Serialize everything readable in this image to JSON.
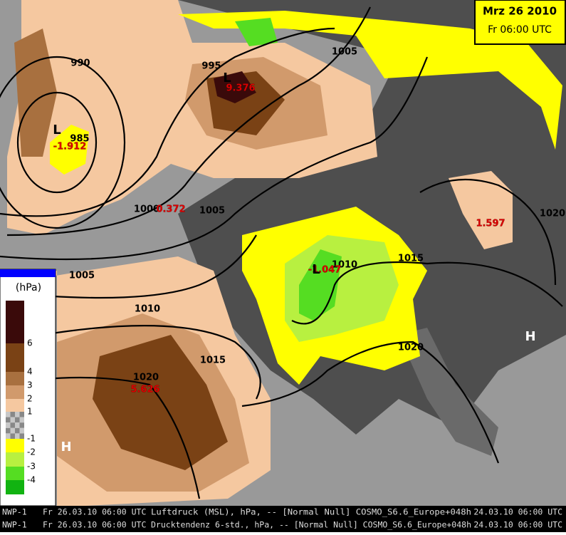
{
  "header": {
    "date": "Mrz 26 2010",
    "time": "Fr 06:00 UTC"
  },
  "isobar_labels": [
    "990",
    "995",
    "1005",
    "985",
    "1000",
    "1005",
    "1005",
    "1010",
    "1015",
    "1020",
    "1010",
    "1015",
    "1020",
    "1020"
  ],
  "tendency_values": [
    "9.376",
    "-1.912",
    "0.372",
    "1.597",
    "-1.047",
    "5.626"
  ],
  "centers": [
    "L",
    "L",
    "L",
    "H",
    "H"
  ],
  "legend": {
    "unit": "(hPa)",
    "entries": [
      {
        "label": "6",
        "color": "#7a4215"
      },
      {
        "label": "4",
        "color": "#a8703f"
      },
      {
        "label": "3",
        "color": "#d19a6c"
      },
      {
        "label": "2",
        "color": "#f5c8a0"
      },
      {
        "label": "1",
        "color": "#c8c8c8"
      },
      {
        "label": "-1",
        "color": "#ffff00"
      },
      {
        "label": "-2",
        "color": "#b8f040"
      },
      {
        "label": "-3",
        "color": "#55dd22"
      },
      {
        "label": "-4",
        "color": "#11b311"
      }
    ]
  },
  "footer": [
    {
      "model": "NWP-1",
      "valid": "Fr 26.03.10 06:00 UTC",
      "field": "Luftdruck (MSL), hPa, -- [Normal Null] COSMO_S6.6_Europe+048h",
      "run": "24.03.10 06:00 UTC"
    },
    {
      "model": "NWP-1",
      "valid": "Fr 26.03.10 06:00 UTC",
      "field": "Drucktendenz 6-std., hPa, -- [Normal Null] COSMO_S6.6_Europe+048h",
      "run": "24.03.10 06:00 UTC"
    }
  ]
}
